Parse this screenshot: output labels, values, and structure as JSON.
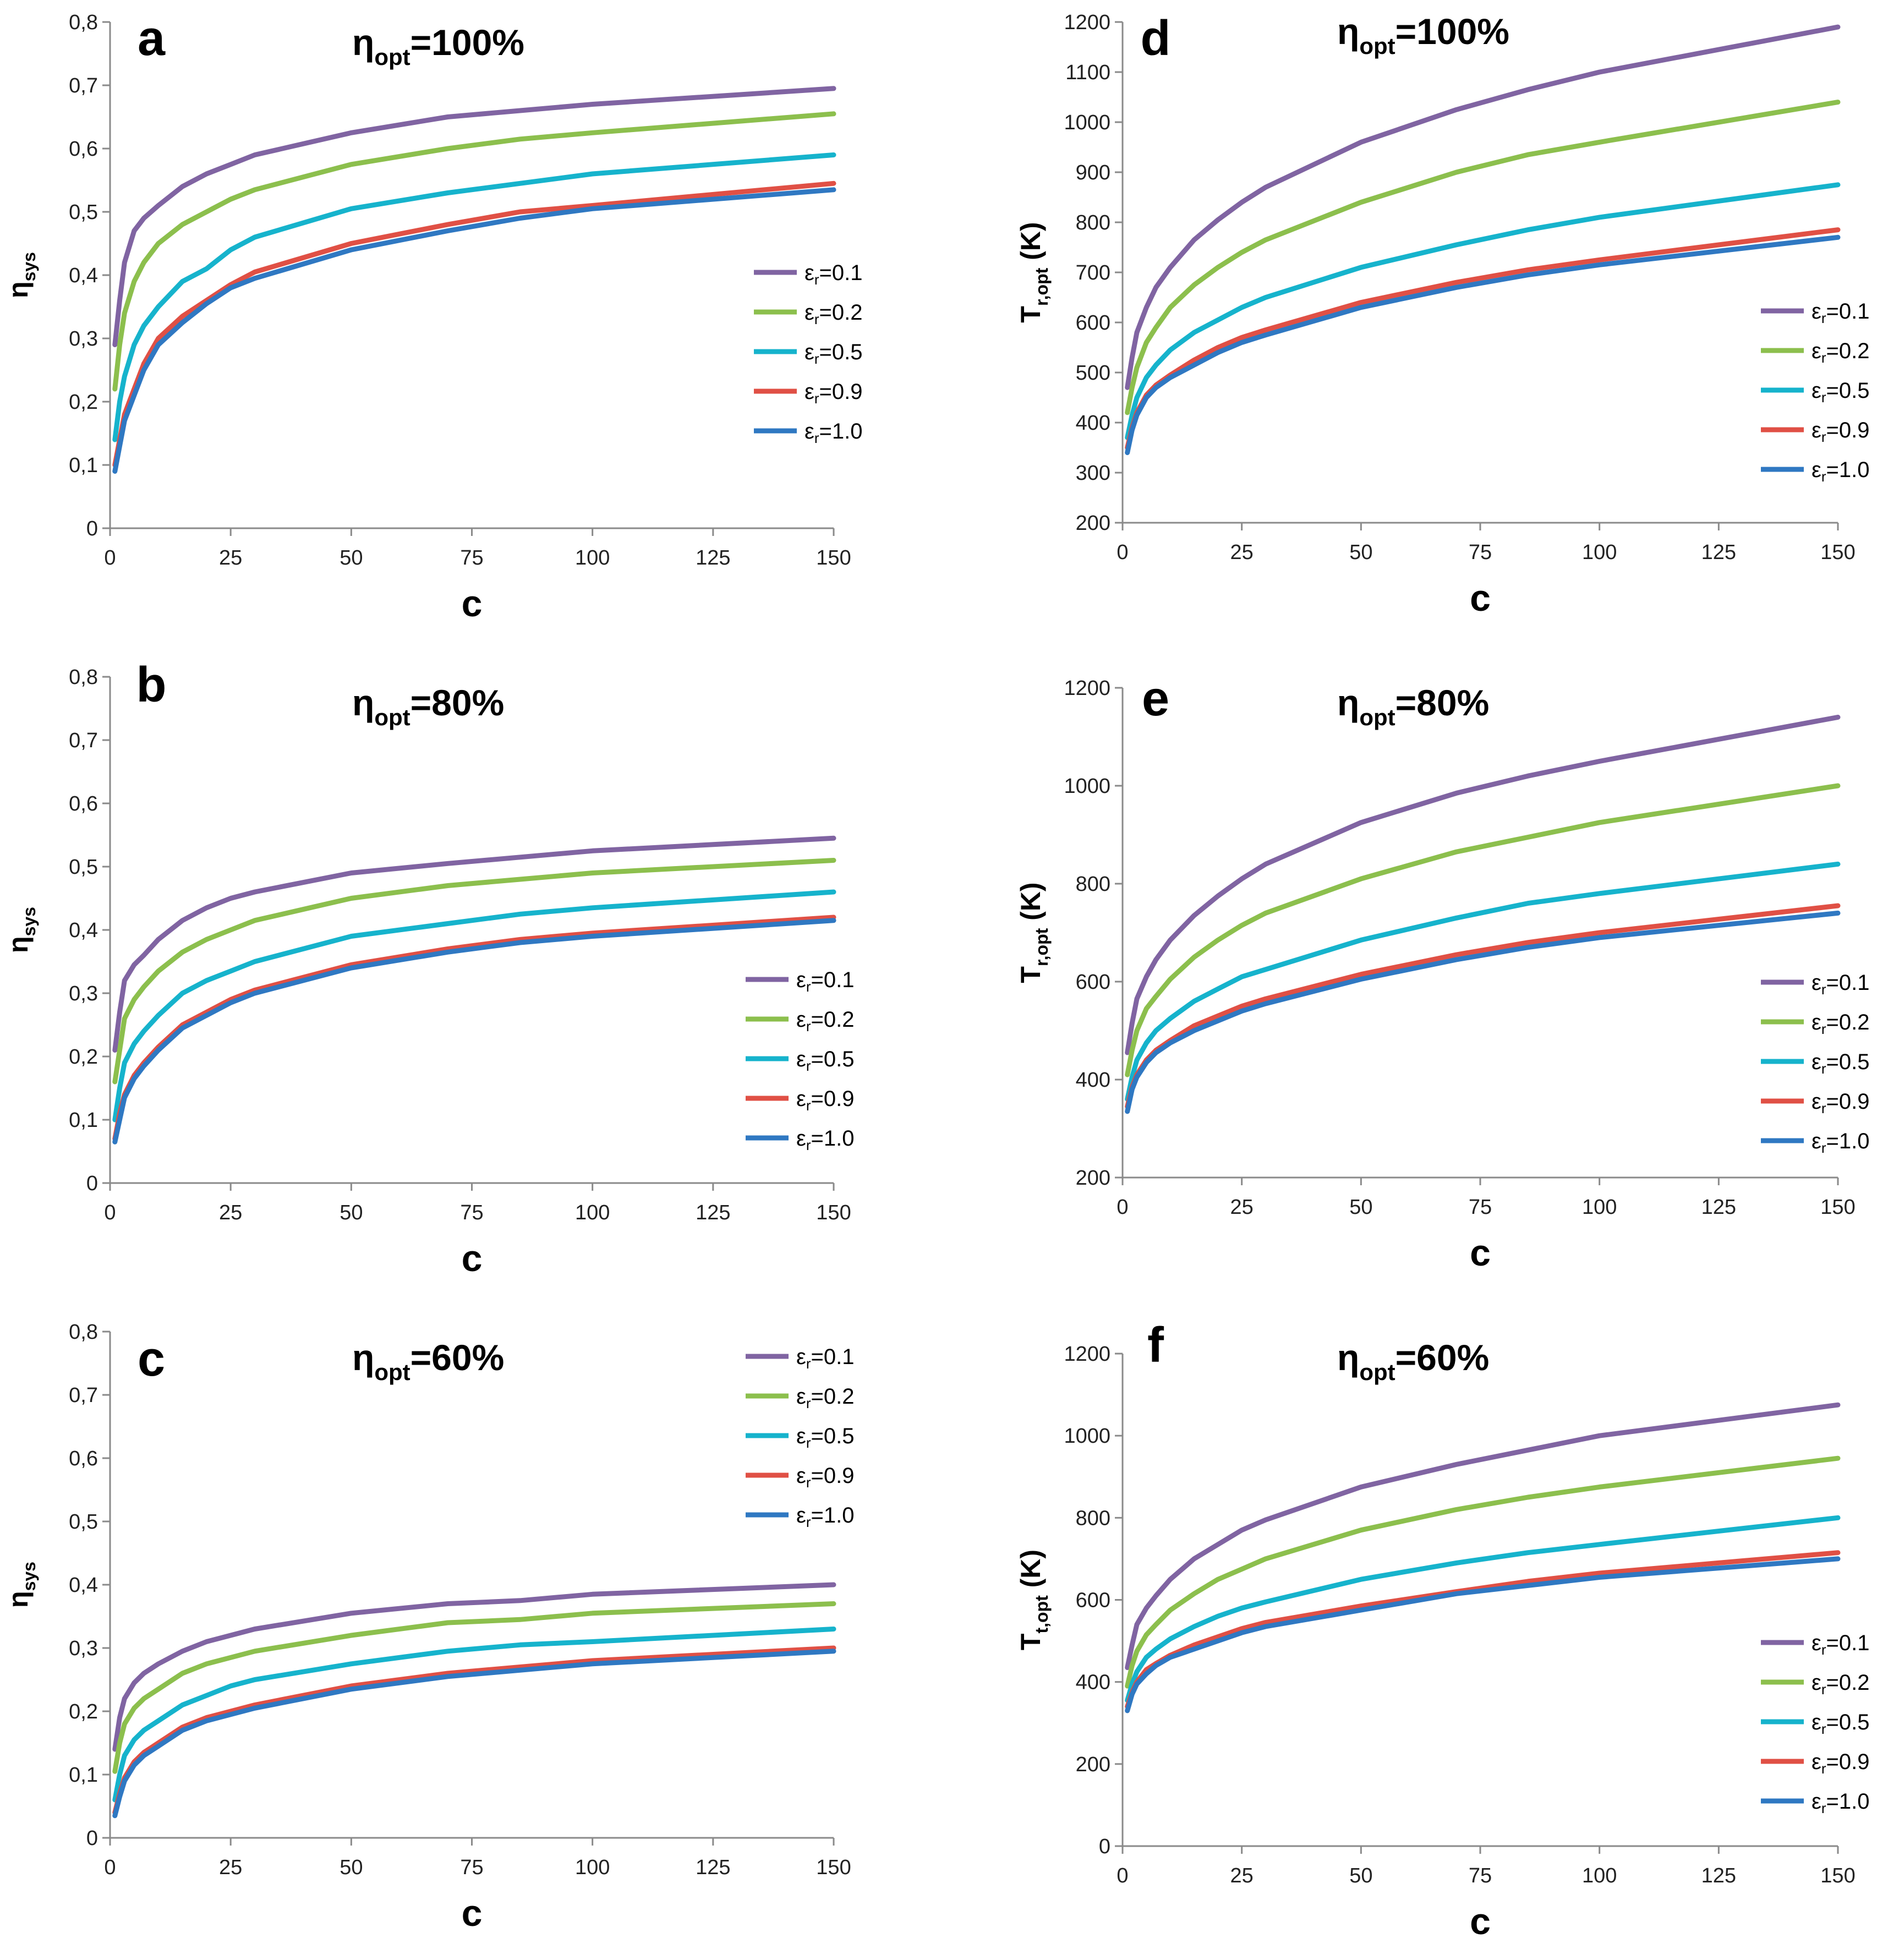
{
  "colors": {
    "0.1": "#8064a2",
    "0.2": "#8cbf4d",
    "0.5": "#16b3cc",
    "0.9": "#e05045",
    "1.0": "#2f78c2"
  },
  "legend": [
    {
      "key": "0.1",
      "sym": "ε",
      "sub": "r",
      "rest": "=0.1"
    },
    {
      "key": "0.2",
      "sym": "ε",
      "sub": "r",
      "rest": "=0.2"
    },
    {
      "key": "0.5",
      "sym": "ε",
      "sub": "r",
      "rest": "=0.5"
    },
    {
      "key": "0.9",
      "sym": "ε",
      "sub": "r",
      "rest": "=0.9"
    },
    {
      "key": "1.0",
      "sym": "ε",
      "sub": "r",
      "rest": "=1.0"
    }
  ],
  "chart_data": [
    {
      "id": "a",
      "letter": "a",
      "type": "line",
      "title": {
        "main": "η",
        "sub": "opt",
        "rest": "=100%"
      },
      "xlabel": "c",
      "ylabel": {
        "main": "η",
        "sub": "sys"
      },
      "xlim": [
        0,
        150
      ],
      "ylim": [
        0,
        0.8
      ],
      "xticks": [
        0,
        25,
        50,
        75,
        100,
        125,
        150
      ],
      "yticks": [
        0,
        0.1,
        0.2,
        0.3,
        0.4,
        0.5,
        0.6,
        0.7,
        0.8
      ],
      "ytick_labels": [
        "0",
        "0,1",
        "0,2",
        "0,3",
        "0,4",
        "0,5",
        "0,6",
        "0,7",
        "0,8"
      ],
      "x": [
        1,
        2,
        3,
        5,
        7,
        10,
        15,
        20,
        25,
        30,
        50,
        70,
        85,
        100,
        150
      ],
      "series": [
        {
          "name": "εr=0.1",
          "key": "0.1",
          "values": [
            0.29,
            0.36,
            0.42,
            0.47,
            0.49,
            0.51,
            0.54,
            0.56,
            0.575,
            0.59,
            0.625,
            0.65,
            0.66,
            0.67,
            0.695
          ]
        },
        {
          "name": "εr=0.2",
          "key": "0.2",
          "values": [
            0.22,
            0.29,
            0.34,
            0.39,
            0.42,
            0.45,
            0.48,
            0.5,
            0.52,
            0.535,
            0.575,
            0.6,
            0.615,
            0.625,
            0.655
          ]
        },
        {
          "name": "εr=0.5",
          "key": "0.5",
          "values": [
            0.14,
            0.2,
            0.24,
            0.29,
            0.32,
            0.35,
            0.39,
            0.41,
            0.44,
            0.46,
            0.505,
            0.53,
            0.545,
            0.56,
            0.59
          ]
        },
        {
          "name": "εr=0.9",
          "key": "0.9",
          "values": [
            0.1,
            0.14,
            0.18,
            0.22,
            0.26,
            0.3,
            0.335,
            0.36,
            0.385,
            0.405,
            0.45,
            0.48,
            0.5,
            0.51,
            0.545
          ]
        },
        {
          "name": "εr=1.0",
          "key": "1.0",
          "values": [
            0.09,
            0.13,
            0.17,
            0.21,
            0.25,
            0.29,
            0.325,
            0.355,
            0.38,
            0.395,
            0.44,
            0.47,
            0.49,
            0.505,
            0.535
          ]
        }
      ]
    },
    {
      "id": "b",
      "letter": "b",
      "type": "line",
      "title": {
        "main": "η",
        "sub": "opt",
        "rest": "=80%"
      },
      "xlabel": "c",
      "ylabel": {
        "main": "η",
        "sub": "sys"
      },
      "xlim": [
        0,
        150
      ],
      "ylim": [
        0,
        0.8
      ],
      "xticks": [
        0,
        25,
        50,
        75,
        100,
        125,
        150
      ],
      "yticks": [
        0,
        0.1,
        0.2,
        0.3,
        0.4,
        0.5,
        0.6,
        0.7,
        0.8
      ],
      "ytick_labels": [
        "0",
        "0,1",
        "0,2",
        "0,3",
        "0,4",
        "0,5",
        "0,6",
        "0,7",
        "0,8"
      ],
      "x": [
        1,
        2,
        3,
        5,
        7,
        10,
        15,
        20,
        25,
        30,
        50,
        70,
        85,
        100,
        150
      ],
      "series": [
        {
          "name": "εr=0.1",
          "key": "0.1",
          "values": [
            0.21,
            0.27,
            0.32,
            0.345,
            0.36,
            0.385,
            0.415,
            0.435,
            0.45,
            0.46,
            0.49,
            0.505,
            0.515,
            0.525,
            0.545
          ]
        },
        {
          "name": "εr=0.2",
          "key": "0.2",
          "values": [
            0.16,
            0.21,
            0.26,
            0.29,
            0.31,
            0.335,
            0.365,
            0.385,
            0.4,
            0.415,
            0.45,
            0.47,
            0.48,
            0.49,
            0.51
          ]
        },
        {
          "name": "εr=0.5",
          "key": "0.5",
          "values": [
            0.1,
            0.15,
            0.19,
            0.22,
            0.24,
            0.265,
            0.3,
            0.32,
            0.335,
            0.35,
            0.39,
            0.41,
            0.425,
            0.435,
            0.46
          ]
        },
        {
          "name": "εr=0.9",
          "key": "0.9",
          "values": [
            0.07,
            0.11,
            0.14,
            0.17,
            0.19,
            0.215,
            0.25,
            0.27,
            0.29,
            0.305,
            0.345,
            0.37,
            0.385,
            0.395,
            0.42
          ]
        },
        {
          "name": "εr=1.0",
          "key": "1.0",
          "values": [
            0.065,
            0.1,
            0.135,
            0.165,
            0.185,
            0.21,
            0.245,
            0.265,
            0.285,
            0.3,
            0.34,
            0.365,
            0.38,
            0.39,
            0.415
          ]
        }
      ]
    },
    {
      "id": "c",
      "letter": "c",
      "type": "line",
      "title": {
        "main": "η",
        "sub": "opt",
        "rest": "=60%"
      },
      "xlabel": "c",
      "ylabel": {
        "main": "η",
        "sub": "sys"
      },
      "xlim": [
        0,
        150
      ],
      "ylim": [
        0,
        0.8
      ],
      "xticks": [
        0,
        25,
        50,
        75,
        100,
        125,
        150
      ],
      "yticks": [
        0,
        0.1,
        0.2,
        0.3,
        0.4,
        0.5,
        0.6,
        0.7,
        0.8
      ],
      "ytick_labels": [
        "0",
        "0,1",
        "0,2",
        "0,3",
        "0,4",
        "0,5",
        "0,6",
        "0,7",
        "0,8"
      ],
      "x": [
        1,
        2,
        3,
        5,
        7,
        10,
        15,
        20,
        25,
        30,
        50,
        70,
        85,
        100,
        150
      ],
      "series": [
        {
          "name": "εr=0.1",
          "key": "0.1",
          "values": [
            0.14,
            0.19,
            0.22,
            0.245,
            0.26,
            0.275,
            0.295,
            0.31,
            0.32,
            0.33,
            0.355,
            0.37,
            0.375,
            0.385,
            0.4
          ]
        },
        {
          "name": "εr=0.2",
          "key": "0.2",
          "values": [
            0.105,
            0.15,
            0.18,
            0.205,
            0.22,
            0.235,
            0.26,
            0.275,
            0.285,
            0.295,
            0.32,
            0.34,
            0.345,
            0.355,
            0.37
          ]
        },
        {
          "name": "εr=0.5",
          "key": "0.5",
          "values": [
            0.06,
            0.1,
            0.13,
            0.155,
            0.17,
            0.185,
            0.21,
            0.225,
            0.24,
            0.25,
            0.275,
            0.295,
            0.305,
            0.31,
            0.33
          ]
        },
        {
          "name": "εr=0.9",
          "key": "0.9",
          "values": [
            0.04,
            0.07,
            0.095,
            0.12,
            0.135,
            0.15,
            0.175,
            0.19,
            0.2,
            0.21,
            0.24,
            0.26,
            0.27,
            0.28,
            0.3
          ]
        },
        {
          "name": "εr=1.0",
          "key": "1.0",
          "values": [
            0.035,
            0.065,
            0.09,
            0.115,
            0.13,
            0.145,
            0.17,
            0.185,
            0.195,
            0.205,
            0.235,
            0.255,
            0.265,
            0.275,
            0.295
          ]
        }
      ]
    },
    {
      "id": "d",
      "letter": "d",
      "type": "line",
      "title": {
        "main": "η",
        "sub": "opt",
        "rest": "=100%"
      },
      "xlabel": "c",
      "ylabel": {
        "main": "T",
        "sub": "r,opt",
        "rest": " (K)"
      },
      "xlim": [
        0,
        150
      ],
      "ylim": [
        200,
        1200
      ],
      "xticks": [
        0,
        25,
        50,
        75,
        100,
        125,
        150
      ],
      "yticks": [
        200,
        300,
        400,
        500,
        600,
        700,
        800,
        900,
        1000,
        1100,
        1200
      ],
      "ytick_labels": [
        "200",
        "300",
        "400",
        "500",
        "600",
        "700",
        "800",
        "900",
        "1000",
        "1100",
        "1200"
      ],
      "x": [
        1,
        2,
        3,
        5,
        7,
        10,
        15,
        20,
        25,
        30,
        50,
        70,
        85,
        100,
        150
      ],
      "series": [
        {
          "name": "εr=0.1",
          "key": "0.1",
          "values": [
            470,
            530,
            580,
            630,
            670,
            710,
            765,
            805,
            840,
            870,
            960,
            1025,
            1065,
            1100,
            1190
          ]
        },
        {
          "name": "εr=0.2",
          "key": "0.2",
          "values": [
            420,
            470,
            510,
            560,
            590,
            630,
            675,
            710,
            740,
            765,
            840,
            900,
            935,
            960,
            1040
          ]
        },
        {
          "name": "εr=0.5",
          "key": "0.5",
          "values": [
            370,
            415,
            450,
            490,
            515,
            545,
            580,
            605,
            630,
            650,
            710,
            755,
            785,
            810,
            875
          ]
        },
        {
          "name": "εr=0.9",
          "key": "0.9",
          "values": [
            350,
            390,
            420,
            455,
            475,
            495,
            525,
            550,
            570,
            585,
            640,
            680,
            705,
            725,
            785
          ]
        },
        {
          "name": "εr=1.0",
          "key": "1.0",
          "values": [
            340,
            385,
            415,
            450,
            470,
            490,
            515,
            540,
            560,
            575,
            630,
            670,
            695,
            715,
            770
          ]
        }
      ]
    },
    {
      "id": "e",
      "letter": "e",
      "type": "line",
      "title": {
        "main": "η",
        "sub": "opt",
        "rest": "=80%"
      },
      "xlabel": "c",
      "ylabel": {
        "main": "T",
        "sub": "r,opt",
        "rest": " (K)"
      },
      "xlim": [
        0,
        150
      ],
      "ylim": [
        200,
        1200
      ],
      "xticks": [
        0,
        25,
        50,
        75,
        100,
        125,
        150
      ],
      "yticks": [
        200,
        400,
        600,
        800,
        1000,
        1200
      ],
      "ytick_labels": [
        "200",
        "400",
        "600",
        "800",
        "1000",
        "1200"
      ],
      "x": [
        1,
        2,
        3,
        5,
        7,
        10,
        15,
        20,
        25,
        30,
        50,
        70,
        85,
        100,
        150
      ],
      "series": [
        {
          "name": "εr=0.1",
          "key": "0.1",
          "values": [
            455,
            515,
            565,
            610,
            645,
            685,
            735,
            775,
            810,
            840,
            925,
            985,
            1020,
            1050,
            1140
          ]
        },
        {
          "name": "εr=0.2",
          "key": "0.2",
          "values": [
            410,
            460,
            500,
            545,
            570,
            605,
            650,
            685,
            715,
            740,
            810,
            865,
            895,
            925,
            1000
          ]
        },
        {
          "name": "εr=0.5",
          "key": "0.5",
          "values": [
            360,
            405,
            440,
            475,
            500,
            525,
            560,
            585,
            610,
            625,
            685,
            730,
            760,
            780,
            840
          ]
        },
        {
          "name": "εr=0.9",
          "key": "0.9",
          "values": [
            345,
            385,
            410,
            440,
            460,
            480,
            510,
            530,
            550,
            565,
            615,
            655,
            680,
            700,
            755
          ]
        },
        {
          "name": "εr=1.0",
          "key": "1.0",
          "values": [
            335,
            380,
            405,
            435,
            455,
            475,
            500,
            520,
            540,
            555,
            605,
            645,
            670,
            690,
            740
          ]
        }
      ]
    },
    {
      "id": "f",
      "letter": "f",
      "type": "line",
      "title": {
        "main": "η",
        "sub": "opt",
        "rest": "=60%"
      },
      "xlabel": "c",
      "ylabel": {
        "main": "T",
        "sub": "t,opt",
        "rest": " (K)"
      },
      "xlim": [
        0,
        150
      ],
      "ylim": [
        0,
        1200
      ],
      "xticks": [
        0,
        25,
        50,
        75,
        100,
        125,
        150
      ],
      "yticks": [
        0,
        200,
        400,
        600,
        800,
        1000,
        1200
      ],
      "ytick_labels": [
        "0",
        "200",
        "400",
        "600",
        "800",
        "1000",
        "1200"
      ],
      "x": [
        1,
        2,
        3,
        5,
        7,
        10,
        15,
        20,
        25,
        30,
        50,
        70,
        85,
        100,
        150
      ],
      "series": [
        {
          "name": "εr=0.1",
          "key": "0.1",
          "values": [
            435,
            490,
            540,
            580,
            610,
            650,
            700,
            735,
            770,
            795,
            875,
            930,
            965,
            1000,
            1075
          ]
        },
        {
          "name": "εr=0.2",
          "key": "0.2",
          "values": [
            390,
            440,
            475,
            515,
            540,
            575,
            615,
            650,
            675,
            700,
            770,
            820,
            850,
            875,
            945
          ]
        },
        {
          "name": "εr=0.5",
          "key": "0.5",
          "values": [
            355,
            395,
            425,
            460,
            480,
            505,
            535,
            560,
            580,
            595,
            650,
            690,
            715,
            735,
            800
          ]
        },
        {
          "name": "εr=0.9",
          "key": "0.9",
          "values": [
            340,
            375,
            400,
            430,
            445,
            465,
            490,
            510,
            530,
            545,
            585,
            620,
            645,
            665,
            715
          ]
        },
        {
          "name": "εr=1.0",
          "key": "1.0",
          "values": [
            330,
            370,
            395,
            420,
            440,
            460,
            480,
            500,
            520,
            535,
            575,
            615,
            635,
            655,
            700
          ]
        }
      ]
    }
  ]
}
